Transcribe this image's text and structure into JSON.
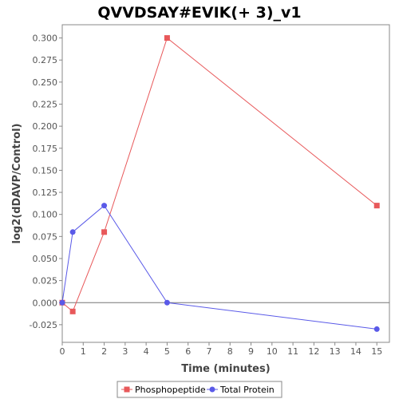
{
  "chart_data": {
    "type": "line",
    "title": "QVVDSAY#EVIK(+ 3)_v1",
    "xlabel": "Time (minutes)",
    "ylabel": "log2(dDAVP/Control)",
    "xlim": [
      0,
      15.6
    ],
    "ylim": [
      -0.045,
      0.315
    ],
    "x_ticks": [
      0,
      1,
      2,
      3,
      4,
      5,
      6,
      7,
      8,
      9,
      10,
      11,
      12,
      13,
      14,
      15
    ],
    "y_ticks": [
      -0.025,
      0.0,
      0.025,
      0.05,
      0.075,
      0.1,
      0.125,
      0.15,
      0.175,
      0.2,
      0.225,
      0.25,
      0.275,
      0.3
    ],
    "y_tick_labels": [
      "-0.025",
      "0.000",
      "0.025",
      "0.050",
      "0.075",
      "0.100",
      "0.125",
      "0.150",
      "0.175",
      "0.200",
      "0.225",
      "0.250",
      "0.275",
      "0.300"
    ],
    "grid": false,
    "legend_position": "bottom",
    "series": [
      {
        "name": "Phosphopeptide",
        "color": "#e8585a",
        "marker": "square",
        "x": [
          0,
          0.5,
          2,
          5,
          15
        ],
        "y": [
          0.0,
          -0.01,
          0.08,
          0.3,
          0.11
        ]
      },
      {
        "name": "Total Protein",
        "color": "#5a5ae8",
        "marker": "circle",
        "x": [
          0,
          0.5,
          2,
          5,
          15
        ],
        "y": [
          0.0,
          0.08,
          0.11,
          0.0,
          -0.03
        ]
      }
    ]
  }
}
